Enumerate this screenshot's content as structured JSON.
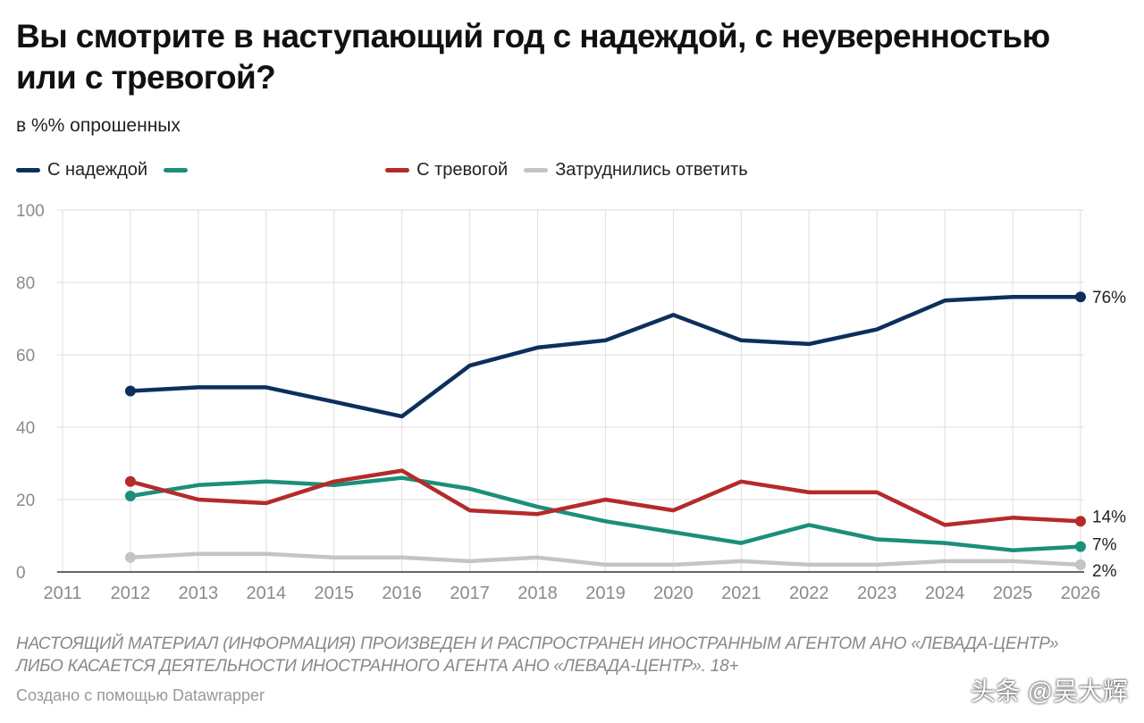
{
  "chart_data": {
    "type": "line",
    "title": "Вы смотрите в наступающий год с надеждой, с неуверенностью или с тревогой?",
    "subtitle": "в %% опрошенных",
    "xlabel": "",
    "ylabel": "",
    "x_ticks": [
      "2011",
      "2012",
      "2013",
      "2014",
      "2015",
      "2016",
      "2017",
      "2018",
      "2019",
      "2020",
      "2021",
      "2022",
      "2023",
      "2024",
      "2025",
      "2026"
    ],
    "xlim": [
      2011,
      2026
    ],
    "ylim": [
      0,
      100
    ],
    "y_ticks": [
      "0",
      "20",
      "40",
      "60",
      "80",
      "100"
    ],
    "grid": true,
    "legend_position": "top-left",
    "x": [
      2012,
      2013,
      2014,
      2015,
      2016,
      2017,
      2018,
      2019,
      2020,
      2021,
      2022,
      2023,
      2024,
      2025,
      2026
    ],
    "series": [
      {
        "name": "С надеждой",
        "color": "#0d2f5c",
        "values": [
          50,
          51,
          51,
          47,
          43,
          57,
          62,
          64,
          71,
          64,
          63,
          67,
          75,
          76,
          76
        ],
        "end_label": "76%"
      },
      {
        "name": "",
        "color": "#1a8f7a",
        "values": [
          21,
          24,
          25,
          24,
          26,
          23,
          18,
          14,
          11,
          8,
          13,
          9,
          8,
          6,
          7
        ],
        "end_label": "7%"
      },
      {
        "name": "С тревогой",
        "color": "#b52a2a",
        "values": [
          25,
          20,
          19,
          25,
          28,
          17,
          16,
          20,
          17,
          25,
          22,
          22,
          13,
          15,
          14
        ],
        "end_label": "14%"
      },
      {
        "name": "Затруднились ответить",
        "color": "#c4c4c4",
        "values": [
          4,
          5,
          5,
          4,
          4,
          3,
          4,
          2,
          2,
          3,
          2,
          2,
          3,
          3,
          2
        ],
        "end_label": "2%"
      }
    ]
  },
  "notes": "Настоящий материал (информация) произведен и распространен иностранным агентом АНО «Левада-Центр» либо касается деятельности иностранного агента АНО «Левада-Центр». 18+",
  "credit": "Создано с помощью Datawrapper",
  "watermark": "头条 @吴大辉",
  "colors": {
    "grid": "#e3e3e3",
    "axis_text": "#8a8a8a",
    "baseline": "#333333"
  }
}
